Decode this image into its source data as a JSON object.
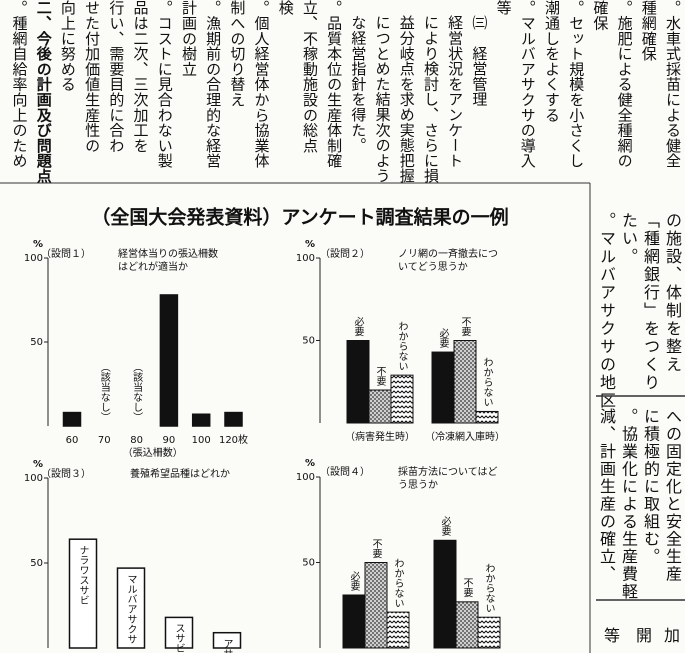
{
  "article": {
    "columns": [
      "。水車式採苗による健全",
      "種網確保",
      "。施肥による健全種網の",
      "確保",
      "。セット規模を小さくし",
      "潮通しをよくする",
      "。マルバアサクサの導入",
      "等",
      "㈢　経営管理",
      "経営状況をアンケート",
      "により検討し、さらに損",
      "益分岐点を求め実態把握",
      "につとめた結果次のよう",
      "な経営指針を得た。",
      "。品質本位の生産体制確",
      "立、不稼動施設の総点",
      "検",
      "。個人経営体から協業体",
      "制への切り替え",
      "。漁期前の合理的な経営",
      "計画の樹立",
      "。コストに見合わない製",
      "品は二次、三次加工を",
      "行い、需要目的に合わ",
      "せた付加価値生産性の",
      "向上に努める",
      "二、今後の計画及び問題点",
      "。種網自給率向上のため"
    ]
  },
  "side": {
    "upper": [
      "の施設、体制を整え",
      "「種網銀行」をつくり",
      "たい。",
      "。マルバアサクサの地区"
    ],
    "lower": [
      "への固定化と安全生産",
      "に積極的に取組む。",
      "。協業化による生産費軽",
      "減、計画生産の確立、"
    ],
    "bottom": [
      "加",
      "開",
      "等"
    ]
  },
  "figure_title": "（全国大会発表資料）アンケート調査結果の一例",
  "chart_data": [
    {
      "type": "bar",
      "title": "（設問１）",
      "question": [
        "経営体当りの張込柵数",
        "はどれが適当か"
      ],
      "categories": [
        "60",
        "70",
        "80",
        "90",
        "100",
        "120枚"
      ],
      "values": [
        8,
        0,
        0,
        78,
        7,
        8
      ],
      "value_labels": [
        null,
        "（該当なし）",
        "（該当なし）",
        null,
        null,
        null
      ],
      "color": "#111111",
      "xlabel": "（張込柵数）",
      "ylabel": "%",
      "ylim": [
        0,
        100
      ],
      "yticks": [
        50,
        100
      ]
    },
    {
      "type": "grouped_bar",
      "title": "（設問２）",
      "question": [
        "ノリ網の一斉撤去につ",
        "いてどう思うか"
      ],
      "categories": [
        "（病害発生時）",
        "（冷凍網入庫時）"
      ],
      "series": [
        {
          "name": "必要",
          "color": "#111111",
          "values": [
            50,
            43
          ]
        },
        {
          "name": "不要",
          "color": "#888888",
          "pattern": "dots",
          "values": [
            20,
            50
          ]
        },
        {
          "name": "わからない",
          "color": "#ffffff",
          "pattern": "zigzag",
          "values": [
            29,
            7
          ]
        }
      ],
      "ylabel": "%",
      "ylim": [
        0,
        100
      ],
      "yticks": [
        50,
        100
      ]
    },
    {
      "type": "bar",
      "title": "（設問３）",
      "question": [
        "養殖希望品種はどれか"
      ],
      "categories": [
        "ナラワスサビ",
        "マルバアサクサ",
        "スサビ",
        "アサクサ"
      ],
      "values": [
        64,
        47,
        18,
        9
      ],
      "category_labels": "inside",
      "color": "#ffffff",
      "ylabel": "%",
      "ylim": [
        0,
        100
      ],
      "yticks": [
        50,
        100
      ]
    },
    {
      "type": "grouped_bar",
      "title": "（設問４）",
      "question": [
        "採苗方法についてはど",
        "う思うか"
      ],
      "categories": [
        null,
        null
      ],
      "series": [
        {
          "name": "必要",
          "color": "#111111",
          "values": [
            31,
            63
          ]
        },
        {
          "name": "不要",
          "color": "#888888",
          "pattern": "dots",
          "values": [
            50,
            27
          ]
        },
        {
          "name": "わからない",
          "color": "#ffffff",
          "pattern": "zigzag",
          "values": [
            21,
            18
          ]
        }
      ],
      "ylabel": "%",
      "ylim": [
        0,
        100
      ],
      "yticks": [
        50,
        100
      ]
    }
  ]
}
